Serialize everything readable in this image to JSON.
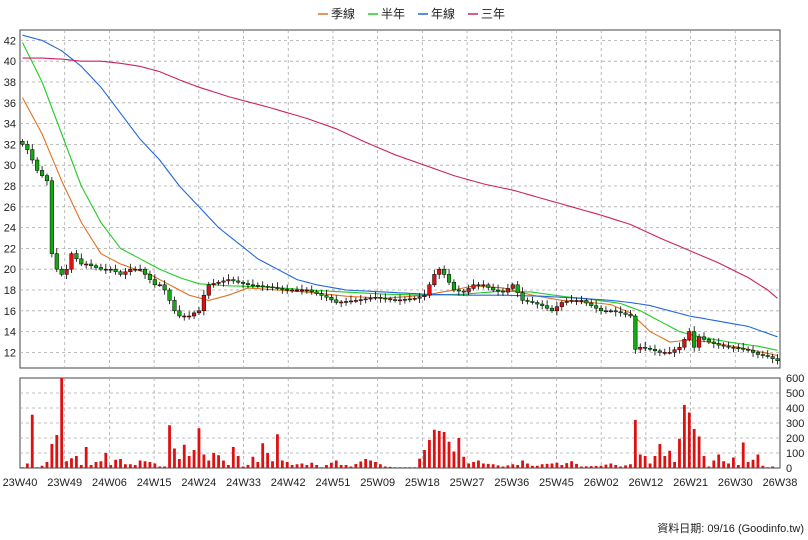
{
  "chart_data": {
    "type": "candlestick",
    "legend": [
      {
        "name": "季線",
        "color": "#e07020"
      },
      {
        "name": "半年",
        "color": "#22cc22"
      },
      {
        "name": "年線",
        "color": "#2266dd"
      },
      {
        "name": "三年",
        "color": "#cc2266"
      }
    ],
    "price_axis": {
      "ylim": [
        10.5,
        43
      ],
      "ticks": [
        12,
        14,
        16,
        18,
        20,
        22,
        24,
        26,
        28,
        30,
        32,
        34,
        36,
        38,
        40,
        42
      ]
    },
    "volume_axis": {
      "ylim": [
        0,
        600
      ],
      "ticks": [
        0,
        100,
        200,
        300,
        400,
        500,
        600
      ]
    },
    "x_ticks": [
      "23W40",
      "23W49",
      "24W06",
      "24W15",
      "24W24",
      "24W33",
      "24W42",
      "24W51",
      "25W09",
      "25W18",
      "25W27",
      "25W36",
      "25W45",
      "26W02",
      "26W12",
      "26W21",
      "26W30",
      "26W38"
    ],
    "footer": "資料日期: 09/16  (Goodinfo.tw)",
    "n_weeks": 155,
    "close_keys": [
      [
        0,
        32
      ],
      [
        1,
        31.5
      ],
      [
        2,
        30.5
      ],
      [
        3,
        29.5
      ],
      [
        4,
        29
      ],
      [
        5,
        28.5
      ],
      [
        6,
        21.5
      ],
      [
        7,
        20
      ],
      [
        8,
        19.5
      ],
      [
        9,
        20
      ],
      [
        10,
        21.5
      ],
      [
        11,
        21
      ],
      [
        12,
        20.5
      ],
      [
        13,
        20.5
      ],
      [
        16,
        20
      ],
      [
        18,
        20
      ],
      [
        20,
        19.5
      ],
      [
        22,
        20
      ],
      [
        24,
        20
      ],
      [
        25,
        19.5
      ],
      [
        26,
        19
      ],
      [
        27,
        18.5
      ],
      [
        28,
        18.5
      ],
      [
        29,
        18
      ],
      [
        31,
        16
      ],
      [
        32,
        15.5
      ],
      [
        33,
        15.5
      ],
      [
        34,
        15.5
      ],
      [
        35,
        15.8
      ],
      [
        36,
        16
      ],
      [
        37,
        17.5
      ],
      [
        38,
        18.5
      ],
      [
        42,
        19
      ],
      [
        46,
        18.5
      ],
      [
        50,
        18.3
      ],
      [
        54,
        18
      ],
      [
        58,
        18
      ],
      [
        62,
        17.3
      ],
      [
        64,
        16.8
      ],
      [
        68,
        17
      ],
      [
        72,
        17.3
      ],
      [
        76,
        17
      ],
      [
        80,
        17.2
      ],
      [
        82,
        17.5
      ],
      [
        84,
        19.5
      ],
      [
        85,
        20
      ],
      [
        86,
        19.5
      ],
      [
        88,
        18
      ],
      [
        90,
        17.8
      ],
      [
        92,
        18.5
      ],
      [
        94,
        18.5
      ],
      [
        96,
        18
      ],
      [
        98,
        17.8
      ],
      [
        100,
        18.5
      ],
      [
        102,
        17
      ],
      [
        104,
        16.8
      ],
      [
        106,
        16.5
      ],
      [
        108,
        16
      ],
      [
        110,
        16.8
      ],
      [
        112,
        17
      ],
      [
        114,
        17
      ],
      [
        116,
        16.5
      ],
      [
        118,
        16
      ],
      [
        120,
        16
      ],
      [
        122,
        15.8
      ],
      [
        124,
        15.5
      ],
      [
        125,
        12.3
      ],
      [
        126,
        12.5
      ],
      [
        128,
        12.3
      ],
      [
        130,
        12
      ],
      [
        132,
        12
      ],
      [
        134,
        12.5
      ],
      [
        136,
        14
      ],
      [
        137,
        12.5
      ],
      [
        138,
        13.5
      ],
      [
        140,
        13
      ],
      [
        142,
        12.7
      ],
      [
        144,
        12.5
      ],
      [
        146,
        12.4
      ],
      [
        148,
        12.2
      ],
      [
        150,
        11.8
      ],
      [
        152,
        11.6
      ],
      [
        154,
        11.2
      ]
    ],
    "volume_keys": [
      [
        0,
        5
      ],
      [
        1,
        30
      ],
      [
        2,
        355
      ],
      [
        3,
        5
      ],
      [
        4,
        15
      ],
      [
        5,
        40
      ],
      [
        6,
        160
      ],
      [
        7,
        220
      ],
      [
        8,
        605
      ],
      [
        9,
        45
      ],
      [
        10,
        65
      ],
      [
        11,
        80
      ],
      [
        12,
        20
      ],
      [
        13,
        140
      ],
      [
        14,
        20
      ],
      [
        15,
        40
      ],
      [
        16,
        45
      ],
      [
        17,
        100
      ],
      [
        18,
        20
      ],
      [
        19,
        55
      ],
      [
        20,
        60
      ],
      [
        21,
        25
      ],
      [
        22,
        25
      ],
      [
        23,
        20
      ],
      [
        24,
        50
      ],
      [
        25,
        45
      ],
      [
        26,
        40
      ],
      [
        27,
        30
      ],
      [
        28,
        10
      ],
      [
        29,
        10
      ],
      [
        30,
        285
      ],
      [
        31,
        130
      ],
      [
        32,
        60
      ],
      [
        33,
        155
      ],
      [
        34,
        80
      ],
      [
        35,
        120
      ],
      [
        36,
        265
      ],
      [
        37,
        90
      ],
      [
        38,
        50
      ],
      [
        39,
        100
      ],
      [
        40,
        85
      ],
      [
        41,
        50
      ],
      [
        42,
        20
      ],
      [
        43,
        140
      ],
      [
        44,
        80
      ],
      [
        45,
        10
      ],
      [
        46,
        20
      ],
      [
        47,
        75
      ],
      [
        48,
        40
      ],
      [
        49,
        165
      ],
      [
        50,
        100
      ],
      [
        51,
        45
      ],
      [
        52,
        225
      ],
      [
        53,
        50
      ],
      [
        54,
        40
      ],
      [
        55,
        20
      ],
      [
        56,
        25
      ],
      [
        57,
        30
      ],
      [
        58,
        20
      ],
      [
        59,
        35
      ],
      [
        60,
        20
      ],
      [
        61,
        5
      ],
      [
        64,
        50
      ],
      [
        65,
        20
      ],
      [
        66,
        20
      ],
      [
        67,
        10
      ],
      [
        70,
        60
      ],
      [
        71,
        50
      ],
      [
        72,
        40
      ],
      [
        74,
        10
      ],
      [
        76,
        5
      ],
      [
        80,
        5
      ],
      [
        82,
        120
      ],
      [
        84,
        255
      ],
      [
        86,
        240
      ],
      [
        88,
        110
      ],
      [
        89,
        200
      ],
      [
        90,
        75
      ],
      [
        91,
        30
      ],
      [
        92,
        40
      ],
      [
        93,
        50
      ],
      [
        94,
        30
      ],
      [
        96,
        25
      ],
      [
        98,
        10
      ],
      [
        100,
        25
      ],
      [
        101,
        20
      ],
      [
        102,
        50
      ],
      [
        103,
        30
      ],
      [
        104,
        15
      ],
      [
        105,
        15
      ],
      [
        106,
        25
      ],
      [
        108,
        30
      ],
      [
        109,
        35
      ],
      [
        110,
        20
      ],
      [
        112,
        45
      ],
      [
        114,
        10
      ],
      [
        118,
        15
      ],
      [
        120,
        30
      ],
      [
        122,
        10
      ],
      [
        124,
        25
      ],
      [
        125,
        320
      ],
      [
        126,
        90
      ],
      [
        127,
        80
      ],
      [
        128,
        30
      ],
      [
        129,
        80
      ],
      [
        130,
        160
      ],
      [
        131,
        80
      ],
      [
        132,
        115
      ],
      [
        133,
        40
      ],
      [
        134,
        195
      ],
      [
        135,
        420
      ],
      [
        136,
        370
      ],
      [
        137,
        260
      ],
      [
        138,
        210
      ],
      [
        139,
        80
      ],
      [
        140,
        10
      ],
      [
        142,
        90
      ],
      [
        143,
        45
      ],
      [
        144,
        30
      ],
      [
        145,
        70
      ],
      [
        146,
        20
      ],
      [
        147,
        170
      ],
      [
        148,
        40
      ],
      [
        149,
        55
      ],
      [
        150,
        90
      ],
      [
        151,
        15
      ],
      [
        152,
        5
      ],
      [
        153,
        10
      ]
    ],
    "ma_quarter": [
      [
        0,
        36.5
      ],
      [
        4,
        33
      ],
      [
        8,
        28.5
      ],
      [
        12,
        24.5
      ],
      [
        16,
        21.5
      ],
      [
        20,
        20.5
      ],
      [
        26,
        19.5
      ],
      [
        30,
        18.5
      ],
      [
        34,
        17.5
      ],
      [
        38,
        17
      ],
      [
        42,
        17.5
      ],
      [
        46,
        18.2
      ],
      [
        52,
        18
      ],
      [
        58,
        17.8
      ],
      [
        66,
        17.4
      ],
      [
        74,
        17.2
      ],
      [
        82,
        17.5
      ],
      [
        88,
        18
      ],
      [
        92,
        18.4
      ],
      [
        98,
        18.2
      ],
      [
        104,
        17.5
      ],
      [
        110,
        17
      ],
      [
        116,
        16.8
      ],
      [
        120,
        16.6
      ],
      [
        124,
        15.8
      ],
      [
        128,
        14
      ],
      [
        132,
        13
      ],
      [
        136,
        13.2
      ],
      [
        140,
        13
      ],
      [
        146,
        12.5
      ],
      [
        152,
        11.9
      ],
      [
        154,
        11.7
      ]
    ],
    "ma_half": [
      [
        0,
        41.8
      ],
      [
        4,
        38
      ],
      [
        8,
        33
      ],
      [
        12,
        28
      ],
      [
        16,
        24.5
      ],
      [
        20,
        22
      ],
      [
        24,
        21
      ],
      [
        28,
        20
      ],
      [
        32,
        19.2
      ],
      [
        36,
        18.6
      ],
      [
        42,
        18.4
      ],
      [
        50,
        18.3
      ],
      [
        58,
        18
      ],
      [
        66,
        17.8
      ],
      [
        74,
        17.6
      ],
      [
        82,
        17.5
      ],
      [
        90,
        17.6
      ],
      [
        98,
        17.9
      ],
      [
        104,
        17.8
      ],
      [
        110,
        17.4
      ],
      [
        116,
        17.1
      ],
      [
        122,
        16.7
      ],
      [
        126,
        16
      ],
      [
        130,
        15
      ],
      [
        134,
        14
      ],
      [
        138,
        13.5
      ],
      [
        144,
        13
      ],
      [
        150,
        12.6
      ],
      [
        154,
        12.2
      ]
    ],
    "ma_year": [
      [
        0,
        42.5
      ],
      [
        4,
        42
      ],
      [
        8,
        41
      ],
      [
        12,
        39.5
      ],
      [
        16,
        37.5
      ],
      [
        20,
        35
      ],
      [
        24,
        32.5
      ],
      [
        28,
        30.5
      ],
      [
        32,
        28
      ],
      [
        36,
        26
      ],
      [
        40,
        24
      ],
      [
        44,
        22.5
      ],
      [
        48,
        21
      ],
      [
        52,
        20
      ],
      [
        56,
        19
      ],
      [
        60,
        18.5
      ],
      [
        66,
        18
      ],
      [
        74,
        17.8
      ],
      [
        82,
        17.6
      ],
      [
        90,
        17.5
      ],
      [
        98,
        17.5
      ],
      [
        106,
        17.4
      ],
      [
        114,
        17.2
      ],
      [
        120,
        17
      ],
      [
        124,
        16.8
      ],
      [
        128,
        16.5
      ],
      [
        132,
        16
      ],
      [
        136,
        15.5
      ],
      [
        142,
        15
      ],
      [
        148,
        14.5
      ],
      [
        154,
        13.5
      ]
    ],
    "ma_3yr": [
      [
        0,
        40.3
      ],
      [
        4,
        40.3
      ],
      [
        8,
        40.2
      ],
      [
        12,
        40
      ],
      [
        16,
        40
      ],
      [
        20,
        39.8
      ],
      [
        24,
        39.5
      ],
      [
        28,
        39
      ],
      [
        32,
        38.2
      ],
      [
        36,
        37.5
      ],
      [
        42,
        36.6
      ],
      [
        50,
        35.6
      ],
      [
        58,
        34.5
      ],
      [
        64,
        33.5
      ],
      [
        70,
        32.2
      ],
      [
        76,
        31
      ],
      [
        82,
        30
      ],
      [
        88,
        29
      ],
      [
        94,
        28.2
      ],
      [
        100,
        27.6
      ],
      [
        106,
        26.8
      ],
      [
        112,
        26
      ],
      [
        118,
        25.2
      ],
      [
        124,
        24.3
      ],
      [
        130,
        23
      ],
      [
        136,
        21.8
      ],
      [
        142,
        20.6
      ],
      [
        148,
        19.2
      ],
      [
        152,
        18
      ],
      [
        154,
        17.2
      ]
    ]
  }
}
